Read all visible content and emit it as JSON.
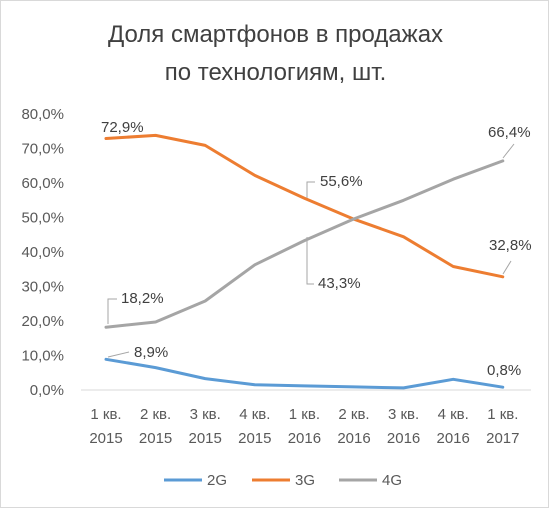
{
  "chart_data": {
    "type": "line",
    "title_lines": [
      "Доля смартфонов в продажах",
      "по технологиям, шт."
    ],
    "categories": [
      [
        "1 кв.",
        "2015"
      ],
      [
        "2 кв.",
        "2015"
      ],
      [
        "3 кв.",
        "2015"
      ],
      [
        "4 кв.",
        "2015"
      ],
      [
        "1 кв.",
        "2016"
      ],
      [
        "2 кв.",
        "2016"
      ],
      [
        "3 кв.",
        "2016"
      ],
      [
        "4 кв.",
        "2016"
      ],
      [
        "1 кв.",
        "2017"
      ]
    ],
    "y_ticks": [
      "0,0%",
      "10,0%",
      "20,0%",
      "30,0%",
      "40,0%",
      "50,0%",
      "60,0%",
      "70,0%",
      "80,0%"
    ],
    "ylim": [
      0,
      80
    ],
    "grid": false,
    "legend_position": "bottom",
    "series": [
      {
        "name": "2G",
        "color": "#5b9bd5",
        "values": [
          8.9,
          6.5,
          3.3,
          1.5,
          1.2,
          0.9,
          0.6,
          3.1,
          0.8
        ]
      },
      {
        "name": "3G",
        "color": "#ed7d31",
        "values": [
          72.9,
          73.8,
          70.9,
          62.2,
          55.6,
          49.5,
          44.4,
          35.8,
          32.8
        ]
      },
      {
        "name": "4G",
        "color": "#a5a5a5",
        "values": [
          18.2,
          19.7,
          25.8,
          36.3,
          43.3,
          49.6,
          55.0,
          61.1,
          66.4
        ]
      }
    ],
    "data_labels": [
      {
        "series": 1,
        "index": 0,
        "text": "72,9%"
      },
      {
        "series": 0,
        "index": 0,
        "text": "8,9%"
      },
      {
        "series": 2,
        "index": 0,
        "text": "18,2%"
      },
      {
        "series": 1,
        "index": 4,
        "text": "55,6%"
      },
      {
        "series": 2,
        "index": 4,
        "text": "43,3%"
      },
      {
        "series": 2,
        "index": 8,
        "text": "66,4%"
      },
      {
        "series": 1,
        "index": 8,
        "text": "32,8%"
      },
      {
        "series": 0,
        "index": 8,
        "text": "0,8%"
      }
    ]
  }
}
